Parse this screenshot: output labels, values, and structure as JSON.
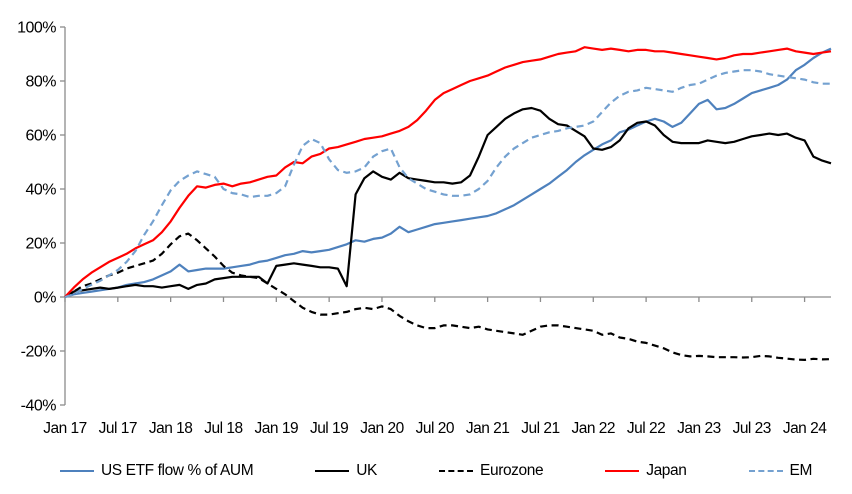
{
  "chart_data": {
    "type": "line",
    "title": "",
    "xlabel": "",
    "ylabel": "",
    "grid": false,
    "legend_position": "bottom",
    "y_axis": {
      "min": -40,
      "max": 100,
      "tick_step": 20,
      "tick_labels": [
        "100%",
        "80%",
        "60%",
        "40%",
        "20%",
        "0%",
        "-20%",
        "-40%"
      ],
      "tick_values": [
        100,
        80,
        60,
        40,
        20,
        0,
        -20,
        -40
      ]
    },
    "x_axis": {
      "tick_labels": [
        "Jan 17",
        "Jul 17",
        "Jan 18",
        "Jul 18",
        "Jan 19",
        "Jul 19",
        "Jan 20",
        "Jul 20",
        "Jan 21",
        "Jul 21",
        "Jan 22",
        "Jul 22",
        "Jan 23",
        "Jul 23",
        "Jan 24"
      ],
      "tick_interval_months": 6,
      "months_count": 88
    },
    "colors": {
      "us_blue": "#4E81BD",
      "em_blue": "#74A1D0",
      "japan_red": "#FF0000",
      "black": "#000000",
      "axis_gray": "#8C8C8C"
    },
    "series": [
      {
        "name": "US ETF flow % of AUM",
        "color": "#4E81BD",
        "style": "solid",
        "values": [
          0,
          1,
          1.5,
          2,
          2.5,
          3,
          3.5,
          4.5,
          5,
          5.5,
          6.5,
          8,
          9.5,
          12,
          9.5,
          10,
          10.5,
          10.5,
          10.5,
          11,
          11.5,
          12,
          13,
          13.5,
          14.5,
          15.5,
          16,
          17,
          16.5,
          17,
          17.5,
          18.5,
          19.5,
          21,
          20.5,
          21.5,
          22,
          23.5,
          26,
          24,
          25,
          26,
          27,
          27.5,
          28,
          28.5,
          29,
          29.5,
          30,
          31,
          32.5,
          34,
          36,
          38,
          40,
          42,
          44.5,
          47,
          50,
          52.5,
          54.5,
          56.5,
          58,
          61,
          62,
          63.5,
          65,
          66,
          65,
          63,
          64.5,
          68,
          71.5,
          73,
          69.5,
          70,
          71.5,
          73.5,
          75.5,
          76.5,
          77.5,
          78.5,
          80.5,
          84,
          86,
          88.5,
          90.5,
          92
        ]
      },
      {
        "name": "UK",
        "color": "#000000",
        "style": "solid",
        "values": [
          0,
          2,
          2.5,
          3,
          3.5,
          3,
          3.5,
          4,
          4.5,
          4,
          4,
          3.5,
          4,
          4.5,
          3,
          4.5,
          5,
          6.5,
          7,
          7.5,
          7.5,
          7.5,
          7.5,
          5,
          11.5,
          12,
          12.5,
          12,
          11.5,
          11,
          11,
          10.5,
          4,
          38,
          44,
          46.5,
          44.5,
          43.5,
          46,
          44,
          43.5,
          43,
          42.5,
          42.5,
          42,
          42.5,
          45,
          52,
          60,
          63,
          66,
          68,
          69.5,
          70,
          69,
          66,
          64,
          63.5,
          61.5,
          59.5,
          55,
          54.5,
          55.5,
          58,
          62.5,
          64.5,
          65,
          63.5,
          60,
          57.5,
          57,
          57,
          57,
          58,
          57.5,
          57,
          57.5,
          58.5,
          59.5,
          60,
          60.5,
          60,
          60.5,
          59,
          58,
          52,
          50.5,
          49.5
        ]
      },
      {
        "name": "Eurozone",
        "color": "#000000",
        "style": "dashed",
        "values": [
          0,
          2,
          4,
          5,
          6.5,
          8,
          9,
          10.5,
          11.5,
          12.5,
          13.5,
          16,
          19.5,
          22.5,
          23.5,
          21,
          18,
          15,
          11.5,
          9,
          8,
          7.5,
          7,
          5,
          3,
          1,
          -1.5,
          -4,
          -5.5,
          -6.5,
          -6.5,
          -6,
          -5.5,
          -4.5,
          -4,
          -4.5,
          -3.5,
          -4.5,
          -7,
          -9,
          -10.5,
          -11.5,
          -11.5,
          -10.5,
          -10.5,
          -11,
          -11.5,
          -11,
          -12,
          -12.5,
          -13,
          -13.5,
          -14,
          -12.5,
          -11,
          -10.5,
          -10.5,
          -11,
          -11.5,
          -12,
          -12.5,
          -14,
          -13.5,
          -15,
          -15.5,
          -16.5,
          -17,
          -18,
          -19,
          -20.5,
          -21.5,
          -22,
          -21.8,
          -22,
          -22.3,
          -22.3,
          -22.3,
          -22.4,
          -22.3,
          -21.8,
          -22,
          -22.5,
          -22.8,
          -23.2,
          -23.3,
          -22.9,
          -23.1,
          -23
        ]
      },
      {
        "name": "Japan",
        "color": "#FF0000",
        "style": "solid",
        "values": [
          0,
          3.5,
          6.5,
          9,
          11,
          13,
          14.5,
          16,
          18,
          19.5,
          21,
          24,
          28,
          33,
          37.5,
          41,
          40.5,
          41.5,
          42,
          41,
          42,
          42.5,
          43.5,
          44.5,
          45,
          48,
          50,
          49.5,
          52,
          53,
          55,
          55.5,
          56.5,
          57.5,
          58.5,
          59,
          59.5,
          60.5,
          61.5,
          63,
          65.5,
          69,
          73,
          75.5,
          77,
          78.5,
          80,
          81,
          82,
          83.5,
          85,
          86,
          87,
          87.5,
          88,
          89,
          90,
          90.5,
          91,
          92.5,
          92,
          91.5,
          92,
          91.5,
          91,
          91.5,
          91.5,
          91,
          91,
          90.5,
          90,
          89.5,
          89,
          88.5,
          88,
          88.5,
          89.5,
          90,
          90,
          90.5,
          91,
          91.5,
          92,
          91,
          90.5,
          90,
          90.5,
          91
        ]
      },
      {
        "name": "EM",
        "color": "#74A1D0",
        "style": "dashed",
        "values": [
          0,
          1,
          3,
          4.5,
          6,
          8,
          10,
          13,
          17,
          23,
          28,
          34,
          39.5,
          43,
          45,
          46.5,
          45.5,
          44.5,
          40,
          38.5,
          38,
          37,
          37.5,
          37.5,
          38.5,
          41,
          49,
          56,
          58.5,
          57,
          51,
          47,
          46,
          46.5,
          48,
          52,
          54,
          55,
          48,
          44,
          42,
          40,
          39,
          38,
          37.5,
          37.5,
          38,
          40,
          43,
          48,
          52,
          55,
          57,
          59,
          60,
          61,
          61.5,
          62.5,
          63,
          63.5,
          65,
          68.5,
          72,
          74.5,
          76,
          76.5,
          77.5,
          77,
          76.5,
          76,
          77.5,
          78.5,
          79,
          80.5,
          82,
          83,
          83.5,
          84,
          84,
          83.5,
          82.5,
          82,
          81.5,
          81,
          80.5,
          79.5,
          79,
          79
        ]
      }
    ]
  }
}
